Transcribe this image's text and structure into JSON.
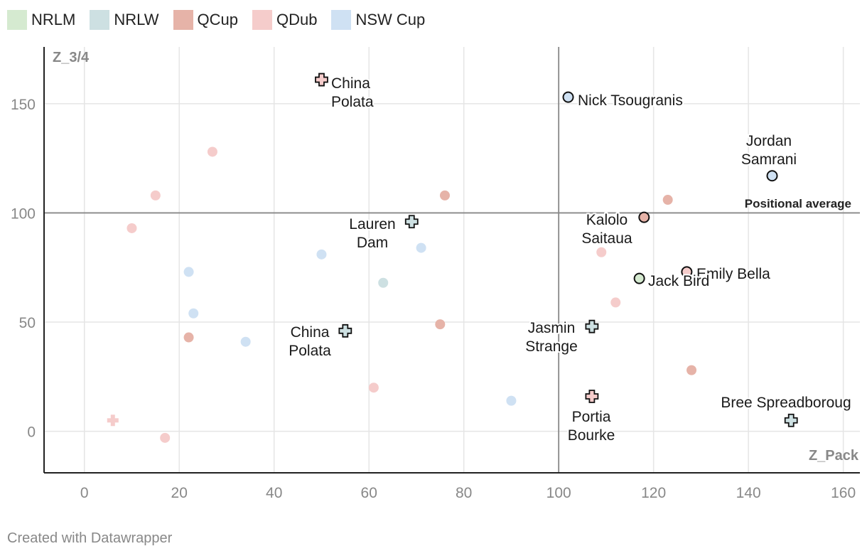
{
  "chart_data": {
    "type": "scatter",
    "xlabel": "Z_Pack",
    "ylabel": "Z_3/4",
    "xlim": [
      -8.5,
      163.5
    ],
    "ylim": [
      -19,
      176
    ],
    "xticks": [
      0,
      20,
      40,
      60,
      80,
      100,
      120,
      140,
      160
    ],
    "yticks": [
      0,
      50,
      100,
      150
    ],
    "reference_lines": {
      "x": 100,
      "y": 100,
      "label": "Positional average"
    },
    "legend": [
      {
        "name": "NRLM",
        "color": "#d5ead0"
      },
      {
        "name": "NRLW",
        "color": "#cde0e2"
      },
      {
        "name": "QCup",
        "color": "#e6b3a8"
      },
      {
        "name": "QDub",
        "color": "#f5cccb"
      },
      {
        "name": "NSW Cup",
        "color": "#cfe1f3"
      }
    ],
    "background_points": [
      {
        "x": 27,
        "y": 128,
        "series": "QDub"
      },
      {
        "x": 15,
        "y": 108,
        "series": "QDub"
      },
      {
        "x": 10,
        "y": 93,
        "series": "QDub"
      },
      {
        "x": 22,
        "y": 73,
        "series": "NSW Cup"
      },
      {
        "x": 23,
        "y": 54,
        "series": "NSW Cup"
      },
      {
        "x": 22,
        "y": 43,
        "series": "QCup"
      },
      {
        "x": 34,
        "y": 41,
        "series": "NSW Cup"
      },
      {
        "x": 50,
        "y": 81,
        "series": "NSW Cup"
      },
      {
        "x": 63,
        "y": 68,
        "series": "NRLW"
      },
      {
        "x": 71,
        "y": 84,
        "series": "NSW Cup"
      },
      {
        "x": 76,
        "y": 108,
        "series": "QCup"
      },
      {
        "x": 75,
        "y": 49,
        "series": "QCup"
      },
      {
        "x": 61,
        "y": 20,
        "series": "QDub"
      },
      {
        "x": 17,
        "y": -3,
        "series": "QDub"
      },
      {
        "x": 90,
        "y": 14,
        "series": "NSW Cup"
      },
      {
        "x": 109,
        "y": 82,
        "series": "QDub"
      },
      {
        "x": 112,
        "y": 59,
        "series": "QDub"
      },
      {
        "x": 123,
        "y": 106,
        "series": "QCup"
      },
      {
        "x": 128,
        "y": 28,
        "series": "QCup"
      }
    ],
    "background_crosses": [
      {
        "x": 6,
        "y": 5,
        "series": "QDub"
      }
    ],
    "highlighted": [
      {
        "name": "China Polata",
        "x": 50,
        "y": 161,
        "series": "QDub",
        "shape": "cross",
        "label_lines": [
          "China",
          "Polata"
        ]
      },
      {
        "name": "Nick Tsougranis",
        "x": 102,
        "y": 153,
        "series": "NSW Cup",
        "shape": "circle",
        "label_lines": [
          "Nick Tsougranis"
        ]
      },
      {
        "name": "Jordan Samrani",
        "x": 145,
        "y": 117,
        "series": "NSW Cup",
        "shape": "circle",
        "label_lines": [
          "Jordan",
          "Samrani"
        ]
      },
      {
        "name": "Kalolo Saitaua",
        "x": 118,
        "y": 98,
        "series": "QCup",
        "shape": "circle",
        "label_lines": [
          "Kalolo",
          "Saitaua"
        ]
      },
      {
        "name": "Lauren Dam",
        "x": 69,
        "y": 96,
        "series": "NRLW",
        "shape": "cross",
        "label_lines": [
          "Lauren",
          "Dam"
        ]
      },
      {
        "name": "Emily Bella",
        "x": 127,
        "y": 73,
        "series": "QDub",
        "shape": "circle",
        "label_lines": [
          "Emily Bella"
        ]
      },
      {
        "name": "Jack Bird",
        "x": 117,
        "y": 70,
        "series": "NRLM",
        "shape": "circle",
        "label_lines": [
          "Jack Bird"
        ]
      },
      {
        "name": "China Polata",
        "x": 55,
        "y": 46,
        "series": "NRLW",
        "shape": "cross",
        "label_lines": [
          "China",
          "Polata"
        ]
      },
      {
        "name": "Jasmin Strange",
        "x": 107,
        "y": 48,
        "series": "NRLW",
        "shape": "cross",
        "label_lines": [
          "Jasmin",
          "Strange"
        ]
      },
      {
        "name": "Portia Bourke",
        "x": 107,
        "y": 16,
        "series": "QDub",
        "shape": "cross",
        "label_lines": [
          "Portia",
          "Bourke"
        ]
      },
      {
        "name": "Bree Spreadboroug",
        "x": 149,
        "y": 5,
        "series": "NRLW",
        "shape": "cross",
        "label_lines": [
          "Bree Spreadboroug"
        ]
      }
    ]
  },
  "footer": "Created with Datawrapper"
}
